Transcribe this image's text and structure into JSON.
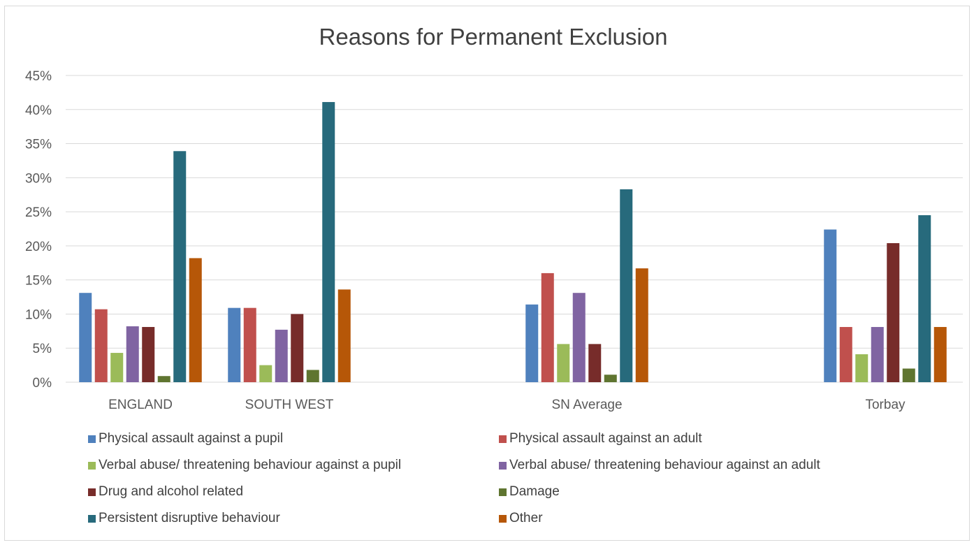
{
  "chart_data": {
    "type": "bar",
    "title": "Reasons for Permanent Exclusion",
    "categories": [
      "ENGLAND",
      "SOUTH WEST",
      "SN Average",
      "Torbay"
    ],
    "ylim": [
      0,
      45
    ],
    "yticks": [
      "0%",
      "5%",
      "10%",
      "15%",
      "20%",
      "25%",
      "30%",
      "35%",
      "40%",
      "45%"
    ],
    "grid": true,
    "legend_position": "bottom",
    "series": [
      {
        "name": "Physical assault against a pupil",
        "color": "#4f81bd",
        "values": [
          13.1,
          10.9,
          11.4,
          22.4
        ]
      },
      {
        "name": "Physical assault against an adult",
        "color": "#c0504d",
        "values": [
          10.7,
          10.9,
          16.0,
          8.1
        ]
      },
      {
        "name": "Verbal abuse/ threatening behaviour against a pupil",
        "color": "#9bbb59",
        "values": [
          4.3,
          2.5,
          5.6,
          4.1
        ]
      },
      {
        "name": "Verbal abuse/ threatening behaviour against an adult",
        "color": "#8064a2",
        "values": [
          8.2,
          7.7,
          13.1,
          8.1
        ]
      },
      {
        "name": "Drug and alcohol related",
        "color": "#772c2a",
        "values": [
          8.1,
          10.0,
          5.6,
          20.4
        ]
      },
      {
        "name": "Damage",
        "color": "#5f7530",
        "values": [
          0.9,
          1.8,
          1.1,
          2.0
        ]
      },
      {
        "name": "Persistent disruptive behaviour",
        "color": "#276a7c",
        "values": [
          33.9,
          41.1,
          28.3,
          24.5
        ]
      },
      {
        "name": "Other",
        "color": "#b65708",
        "values": [
          18.2,
          13.6,
          16.7,
          8.1
        ]
      }
    ]
  }
}
